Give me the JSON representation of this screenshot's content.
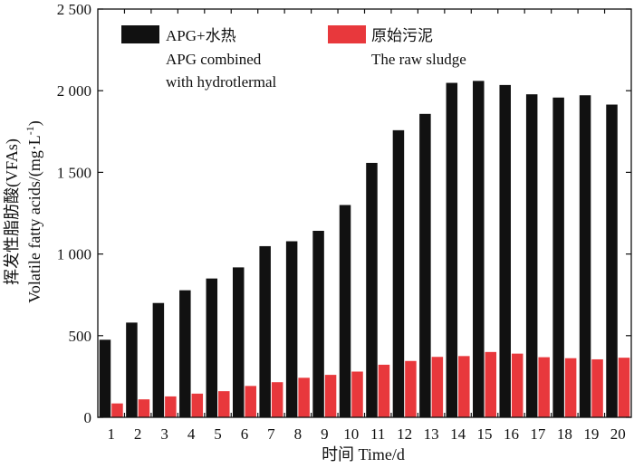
{
  "chart_data": {
    "type": "bar",
    "title": "",
    "xlabel": "时间 Time/d",
    "ylabel": "挥发性脂肪酸(VFAs) Volatile fatty acids/(mg·L⁻¹)",
    "ylabel_cn": "挥发性脂肪酸(VFAs)",
    "ylabel_en": "Volatile fatty acids/(mg·L",
    "ylabel_sup": "-1",
    "ylabel_close": ")",
    "ylim": [
      0,
      2500
    ],
    "yticks": [
      0,
      500,
      1000,
      1500,
      2000,
      2500
    ],
    "ytick_labels": [
      "0",
      "500",
      "1 000",
      "1 500",
      "2 000",
      "2 500"
    ],
    "categories": [
      "1",
      "2",
      "3",
      "4",
      "5",
      "6",
      "7",
      "8",
      "9",
      "10",
      "11",
      "12",
      "13",
      "14",
      "15",
      "16",
      "17",
      "18",
      "19",
      "20"
    ],
    "grid": false,
    "legend_position": "top-left",
    "series": [
      {
        "name": "APG+水热",
        "name_en": "APG combined with hydrotlermal",
        "color": "#111111",
        "values": [
          475,
          580,
          700,
          778,
          850,
          918,
          1048,
          1078,
          1142,
          1300,
          1558,
          1758,
          1858,
          2048,
          2060,
          2035,
          1978,
          1958,
          1972,
          1915
        ]
      },
      {
        "name": "原始污泥",
        "name_en": "The raw sludge",
        "color": "#e8383c",
        "values": [
          85,
          110,
          128,
          145,
          160,
          192,
          215,
          242,
          260,
          280,
          322,
          345,
          370,
          375,
          400,
          390,
          368,
          362,
          355,
          365
        ]
      }
    ]
  },
  "legend": [
    {
      "cn": "APG+水热",
      "en_line1": "APG combined",
      "en_line2": "with hydrotlermal",
      "color": "#111111"
    },
    {
      "cn": "原始污泥",
      "en_line1": "The raw sludge",
      "en_line2": "",
      "color": "#e8383c"
    }
  ]
}
